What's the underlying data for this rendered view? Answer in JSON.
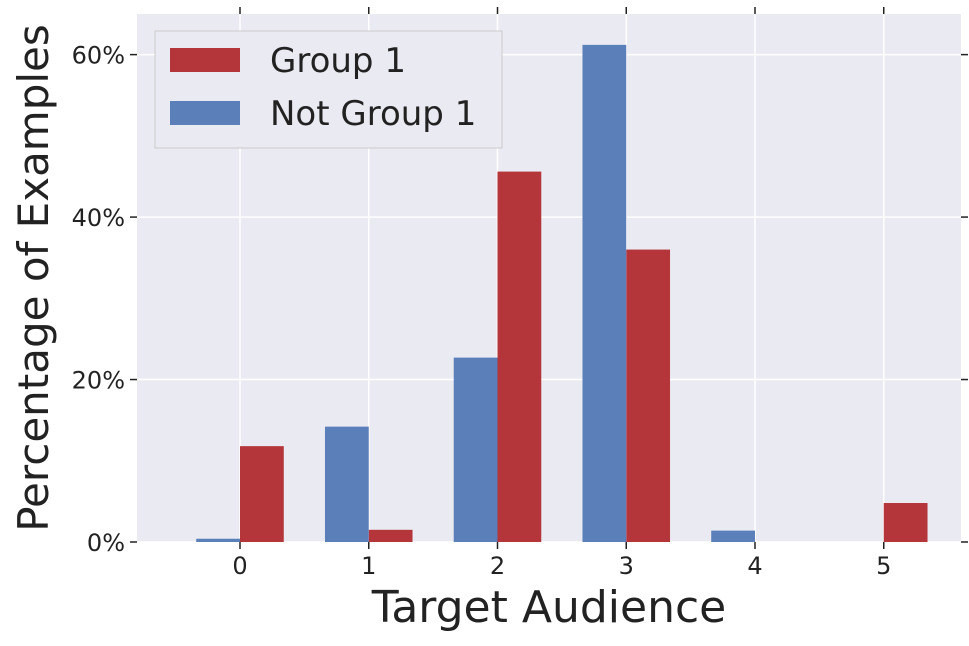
{
  "chart_data": {
    "type": "bar",
    "xlabel": "Target Audience",
    "ylabel": "Percentage of Examples",
    "categories": [
      "0",
      "1",
      "2",
      "3",
      "4",
      "5"
    ],
    "ylim": [
      0,
      65
    ],
    "xlim": [
      -0.8,
      5.6
    ],
    "yticks": [
      {
        "value": 0,
        "label": "0%"
      },
      {
        "value": 20,
        "label": "20%"
      },
      {
        "value": 40,
        "label": "40%"
      },
      {
        "value": 60,
        "label": "60%"
      }
    ],
    "grid": true,
    "legend_position": "top-left",
    "series": [
      {
        "name": "Group 1",
        "color": "#b5363a",
        "offset": 0.17,
        "values": [
          11.8,
          1.5,
          45.6,
          36.0,
          0.0,
          4.8
        ]
      },
      {
        "name": "Not Group 1",
        "color": "#5b7fb8",
        "offset": -0.17,
        "values": [
          0.4,
          14.2,
          22.7,
          61.2,
          1.4,
          0.0
        ]
      }
    ]
  },
  "colors": {
    "plot_background": "#eaeaf2",
    "grid": "#ffffff",
    "text": "#222222"
  }
}
